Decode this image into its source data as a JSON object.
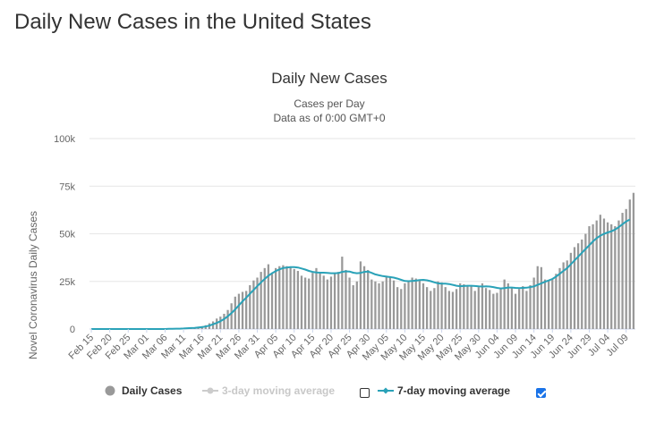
{
  "page": {
    "title": "Daily New Cases in the United States"
  },
  "chart_data": {
    "type": "bar",
    "title": "Daily New Cases",
    "subtitle": [
      "Cases per Day",
      "Data as of 0:00 GMT+0"
    ],
    "xlabel": "",
    "ylabel": "Novel Coronavirus Daily Cases",
    "ylim": [
      0,
      100000
    ],
    "yticks": [
      0,
      25000,
      50000,
      75000,
      100000
    ],
    "ytick_labels": [
      "0",
      "25k",
      "50k",
      "75k",
      "100k"
    ],
    "grid": "horizontal",
    "legend_position": "bottom",
    "x_start": "Feb 15",
    "x_end": "Jul 11",
    "xtick_labels": [
      "Feb 15",
      "Feb 20",
      "Feb 25",
      "Mar 01",
      "Mar 06",
      "Mar 11",
      "Mar 16",
      "Mar 21",
      "Mar 26",
      "Mar 31",
      "Apr 05",
      "Apr 10",
      "Apr 15",
      "Apr 20",
      "Apr 25",
      "Apr 30",
      "May 05",
      "May 10",
      "May 15",
      "May 20",
      "May 25",
      "May 30",
      "Jun 04",
      "Jun 09",
      "Jun 14",
      "Jun 19",
      "Jun 24",
      "Jun 29",
      "Jul 04",
      "Jul 09"
    ],
    "series": [
      {
        "name": "Daily Cases",
        "type": "bar",
        "color": "#999999",
        "values": [
          0,
          0,
          0,
          0,
          0,
          0,
          0,
          0,
          0,
          0,
          0,
          0,
          0,
          0,
          0,
          0,
          0,
          0,
          0,
          0,
          100,
          100,
          200,
          200,
          300,
          400,
          500,
          700,
          900,
          1100,
          1500,
          2000,
          3000,
          4000,
          5500,
          6500,
          8000,
          10000,
          13500,
          17000,
          18500,
          19500,
          20000,
          23000,
          25500,
          27000,
          30000,
          32000,
          34000,
          29000,
          32000,
          33000,
          33500,
          33000,
          32500,
          31500,
          30500,
          28000,
          27000,
          26500,
          29500,
          32000,
          30000,
          28000,
          26000,
          27500,
          29000,
          30000,
          38000,
          31000,
          27000,
          23000,
          25000,
          35500,
          33000,
          31000,
          26000,
          25000,
          24000,
          25000,
          28000,
          27000,
          25500,
          22000,
          21000,
          24000,
          25500,
          27000,
          26500,
          26000,
          24000,
          22000,
          20000,
          21500,
          25000,
          24500,
          22000,
          20000,
          19500,
          21000,
          24000,
          23500,
          23000,
          22500,
          20000,
          22000,
          24000,
          21500,
          20500,
          18500,
          19000,
          21000,
          26000,
          24000,
          22000,
          18500,
          21000,
          22500,
          20000,
          23000,
          27000,
          33000,
          32500,
          26000,
          25500,
          26500,
          29000,
          32000,
          35000,
          36000,
          40000,
          43000,
          45000,
          47000,
          50000,
          54000,
          55000,
          57000,
          60000,
          58000,
          56000,
          55000,
          54000,
          57000,
          61000,
          63000,
          68000,
          71500
        ],
        "values_note": ""
      },
      {
        "name": "3-day moving average",
        "type": "line",
        "color": "#cccccc",
        "enabled": false
      },
      {
        "name": "7-day moving average",
        "type": "line",
        "color": "#2aa2b8",
        "enabled": true,
        "values": [
          0,
          0,
          0,
          0,
          0,
          0,
          0,
          0,
          0,
          0,
          0,
          0,
          0,
          0,
          0,
          0,
          0,
          0,
          0,
          0,
          0,
          100,
          100,
          200,
          200,
          300,
          400,
          500,
          600,
          800,
          1000,
          1300,
          1800,
          2500,
          3200,
          4100,
          5200,
          6700,
          8400,
          10300,
          12400,
          14500,
          16500,
          18500,
          20500,
          22500,
          24500,
          26300,
          28000,
          29300,
          30400,
          31300,
          32000,
          32300,
          32500,
          32500,
          32300,
          31800,
          31200,
          30500,
          30000,
          29700,
          29600,
          29600,
          29500,
          29300,
          29300,
          29400,
          30000,
          30300,
          30200,
          29600,
          29300,
          29500,
          30000,
          30200,
          29500,
          28700,
          28200,
          27800,
          27500,
          27300,
          27000,
          26500,
          25800,
          25200,
          25100,
          25200,
          25400,
          25700,
          25800,
          25600,
          25100,
          24500,
          24000,
          23800,
          23800,
          23600,
          23200,
          22700,
          22500,
          22600,
          22700,
          22700,
          22600,
          22400,
          22300,
          22400,
          22300,
          22000,
          21600,
          21300,
          21500,
          21800,
          21800,
          21600,
          21500,
          21600,
          21700,
          22000,
          22400,
          23200,
          24000,
          24800,
          25500,
          26300,
          27500,
          29000,
          30500,
          32000,
          34000,
          36000,
          38000,
          40000,
          42000,
          44000,
          46000,
          47700,
          49000,
          50000,
          50700,
          51300,
          52200,
          53500,
          55000,
          56500,
          57500
        ]
      }
    ]
  },
  "legend": {
    "items": [
      {
        "label": "Daily Cases",
        "enabled": true
      },
      {
        "label": "3-day moving average",
        "enabled": false,
        "checked": false
      },
      {
        "label": "7-day moving average",
        "enabled": true,
        "checked": true
      }
    ]
  }
}
